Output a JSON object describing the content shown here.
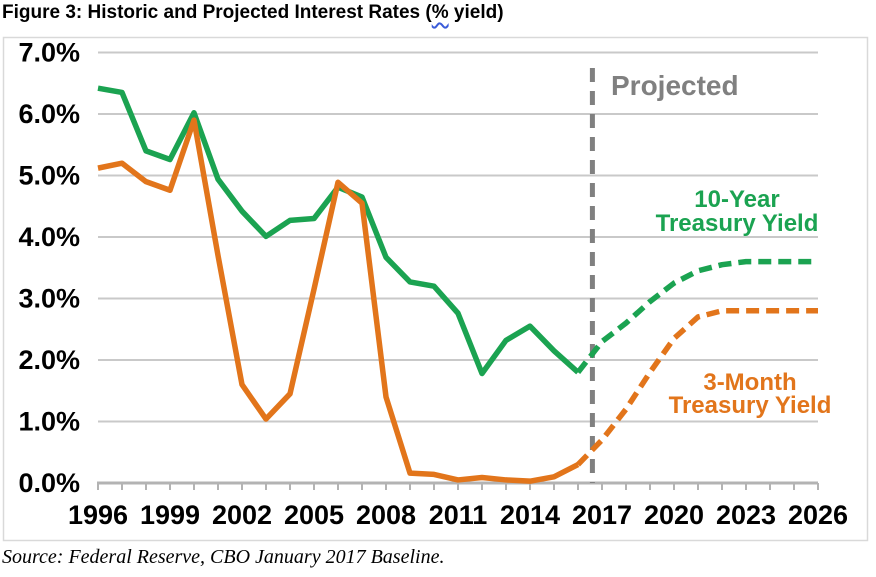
{
  "title": {
    "part1": "Figure 3: Historic and Projected Interest Rates (",
    "squiggled": "%",
    "part2": " yield)"
  },
  "source_note": "Source: Federal Reserve, CBO January 2017 Baseline.",
  "colors": {
    "green": "#1ba351",
    "orange": "#e2751b",
    "projected": "#808080",
    "gridline": "#c9c9c9",
    "axis": "#b3b3b3",
    "frame": "#d9d9d9"
  },
  "chart_data": {
    "type": "line",
    "title": "Figure 3: Historic and Projected Interest Rates (% yield)",
    "xlabel": "",
    "ylabel": "% yield",
    "grid": true,
    "ylim": [
      0,
      7
    ],
    "x": [
      1996,
      1997,
      1998,
      1999,
      2000,
      2001,
      2002,
      2003,
      2004,
      2005,
      2006,
      2007,
      2008,
      2009,
      2010,
      2011,
      2012,
      2013,
      2014,
      2015,
      2016,
      2017,
      2018,
      2019,
      2020,
      2021,
      2022,
      2023,
      2024,
      2025,
      2026
    ],
    "xticks": [
      1996,
      1999,
      2002,
      2005,
      2008,
      2011,
      2014,
      2017,
      2020,
      2023,
      2026
    ],
    "yticks": [
      "0.0%",
      "1.0%",
      "2.0%",
      "3.0%",
      "4.0%",
      "5.0%",
      "6.0%",
      "7.0%"
    ],
    "series": [
      {
        "id": "ten-year-treasury",
        "name": "10-Year Treasury Yield",
        "label_lines": [
          "10-Year",
          "Treasury Yield"
        ],
        "color": "#1ba351",
        "dash_from": 2016,
        "values": [
          6.42,
          6.35,
          5.4,
          5.26,
          6.02,
          4.94,
          4.42,
          4.01,
          4.27,
          4.3,
          4.81,
          4.65,
          3.67,
          3.27,
          3.2,
          2.76,
          1.78,
          2.32,
          2.55,
          2.15,
          1.8,
          2.3,
          2.6,
          2.95,
          3.25,
          3.45,
          3.55,
          3.6,
          3.6,
          3.6,
          3.6
        ]
      },
      {
        "id": "three-month-treasury",
        "name": "3-Month Treasury Yield",
        "label_lines": [
          "3-Month",
          "Treasury Yield"
        ],
        "color": "#e2751b",
        "dash_from": 2016,
        "values": [
          5.12,
          5.2,
          4.9,
          4.76,
          5.9,
          3.7,
          1.6,
          1.04,
          1.45,
          3.15,
          4.89,
          4.55,
          1.4,
          0.16,
          0.14,
          0.05,
          0.09,
          0.05,
          0.03,
          0.1,
          0.3,
          0.7,
          1.2,
          1.8,
          2.35,
          2.7,
          2.8,
          2.8,
          2.8,
          2.8,
          2.8
        ]
      }
    ],
    "projected": {
      "label": "Projected",
      "boundary_year": 2016.6
    }
  }
}
